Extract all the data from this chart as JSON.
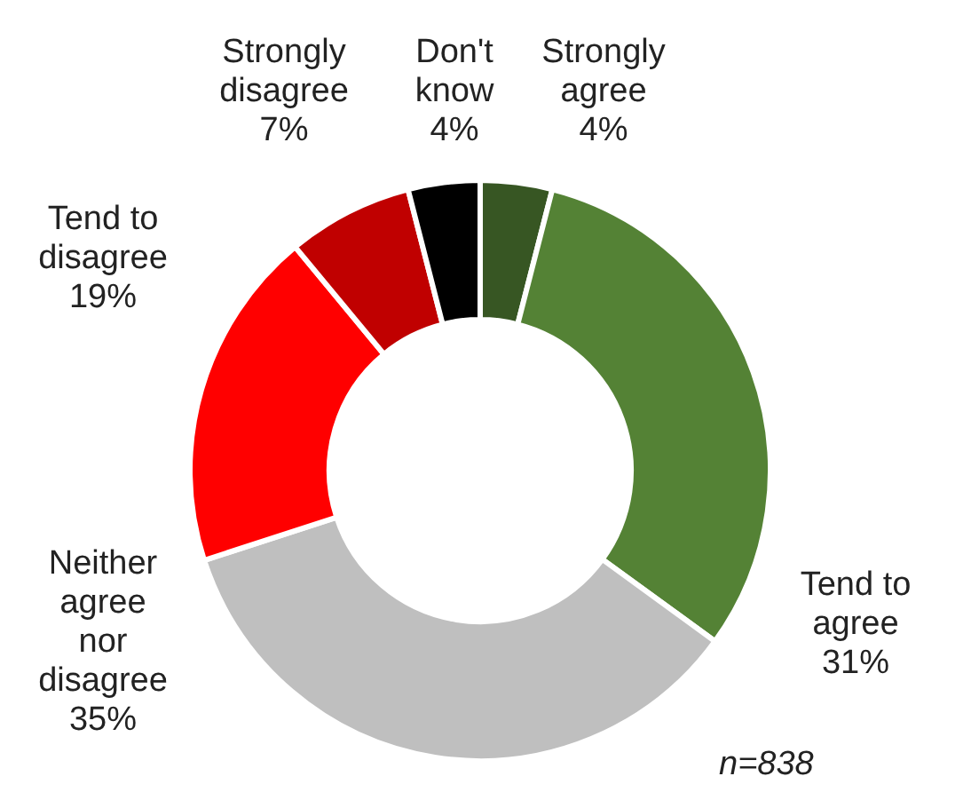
{
  "chart_data": {
    "type": "donut",
    "categories": [
      "Strongly agree",
      "Tend to agree",
      "Neither agree nor disagree",
      "Tend to disagree",
      "Strongly disagree",
      "Don't know"
    ],
    "values": [
      4,
      31,
      35,
      19,
      7,
      4
    ],
    "value_labels": [
      "4%",
      "31%",
      "35%",
      "19%",
      "7%",
      "4%"
    ],
    "colors": [
      "#375623",
      "#548235",
      "#bfbfbf",
      "#ff0000",
      "#c00000",
      "#000000"
    ],
    "legend": false,
    "annotations": [
      "n=838"
    ]
  }
}
